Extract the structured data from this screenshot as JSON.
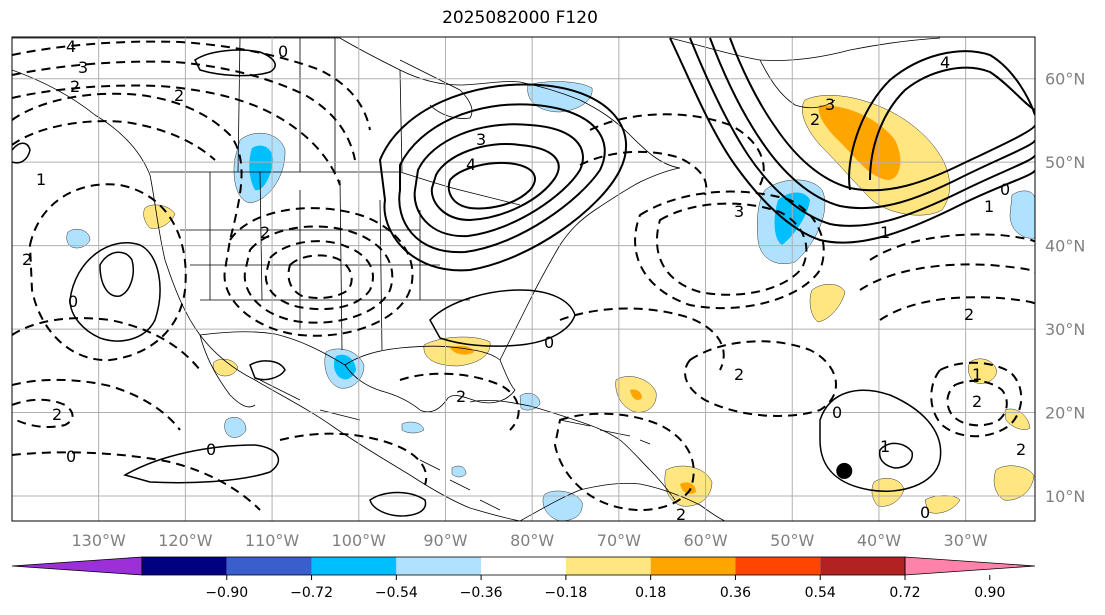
{
  "title": "2025082000 F120",
  "map": {
    "projection": "cylindrical",
    "lon_range": [
      -140,
      -22
    ],
    "lat_range": [
      7,
      65
    ],
    "meridians": [
      -130,
      -120,
      -110,
      -100,
      -90,
      -80,
      -70,
      -60,
      -50,
      -40,
      -30
    ],
    "parallels": [
      10,
      20,
      30,
      40,
      50,
      60
    ],
    "lon_labels": [
      "130°W",
      "120°W",
      "110°W",
      "100°W",
      "90°W",
      "80°W",
      "70°W",
      "60°W",
      "50°W",
      "40°W",
      "30°W"
    ],
    "lat_labels": [
      "10°N",
      "20°N",
      "30°N",
      "40°N",
      "50°N",
      "60°N"
    ],
    "grid": true,
    "marker": {
      "lon": -44,
      "lat": 13,
      "color": "#000000"
    }
  },
  "contour_labels": [
    "4",
    "3",
    "2",
    "0",
    "3",
    "4",
    "3",
    "2",
    "1",
    "0",
    "2",
    "0",
    "0",
    "2",
    "0",
    "0",
    "2",
    "1",
    "2",
    "1",
    "2",
    "3",
    "2",
    "1",
    "2",
    "0",
    "2",
    "2",
    "2",
    "1",
    "0",
    "4"
  ],
  "colorbar": {
    "tick_labels": [
      "−0.90",
      "−0.72",
      "−0.54",
      "−0.36",
      "−0.18",
      "0.18",
      "0.36",
      "0.54",
      "0.72",
      "0.90"
    ],
    "colors": [
      "#9b30d9",
      "#000080",
      "#3a5fcd",
      "#00bfff",
      "#b0e2ff",
      "#ffffff",
      "#ffe680",
      "#ffa500",
      "#ff4500",
      "#b22222",
      "#ff82ab"
    ],
    "extend": "both"
  }
}
